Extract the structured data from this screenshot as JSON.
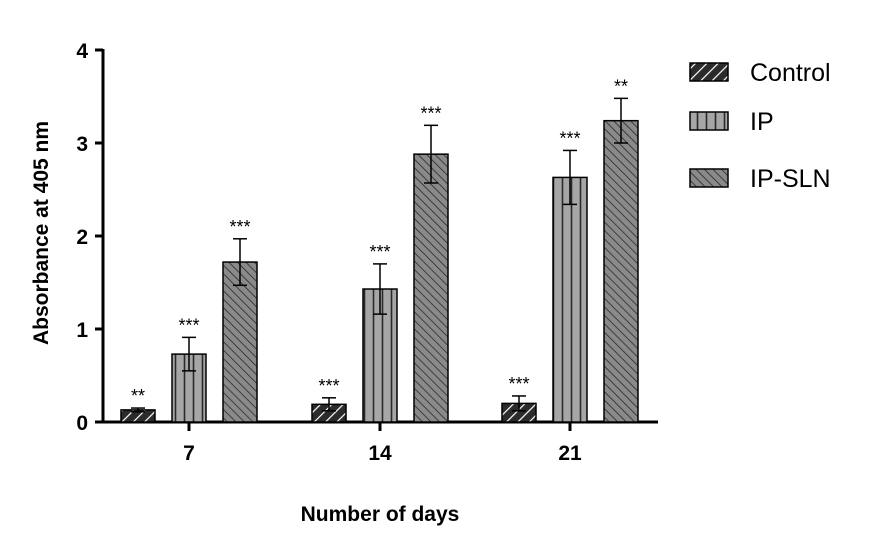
{
  "chart_data": {
    "type": "bar",
    "categories": [
      "7",
      "14",
      "21"
    ],
    "xlabel": "Number of days",
    "ylabel": "Absorbance at 405 nm",
    "ylim": [
      0,
      4
    ],
    "yticks": [
      "0",
      "1",
      "2",
      "3",
      "4"
    ],
    "grid": false,
    "legend_position": "top-right",
    "series": [
      {
        "name": "Control",
        "pattern": "diagonal-hatch",
        "fill": "#2b2b2b",
        "values": [
          0.13,
          0.19,
          0.2
        ],
        "errors": [
          0.02,
          0.07,
          0.08
        ],
        "significance": [
          "**",
          "***",
          "***"
        ]
      },
      {
        "name": "IP",
        "pattern": "vertical-lines",
        "fill": "#a6a6a6",
        "values": [
          0.73,
          1.43,
          2.63
        ],
        "errors": [
          0.18,
          0.27,
          0.29
        ],
        "significance": [
          "***",
          "***",
          "***"
        ]
      },
      {
        "name": "IP-SLN",
        "pattern": "dense-diagonal",
        "fill": "#8a8a8a",
        "values": [
          1.72,
          2.88,
          3.24
        ],
        "errors": [
          0.25,
          0.31,
          0.24
        ],
        "significance": [
          "***",
          "***",
          "**"
        ]
      }
    ]
  }
}
